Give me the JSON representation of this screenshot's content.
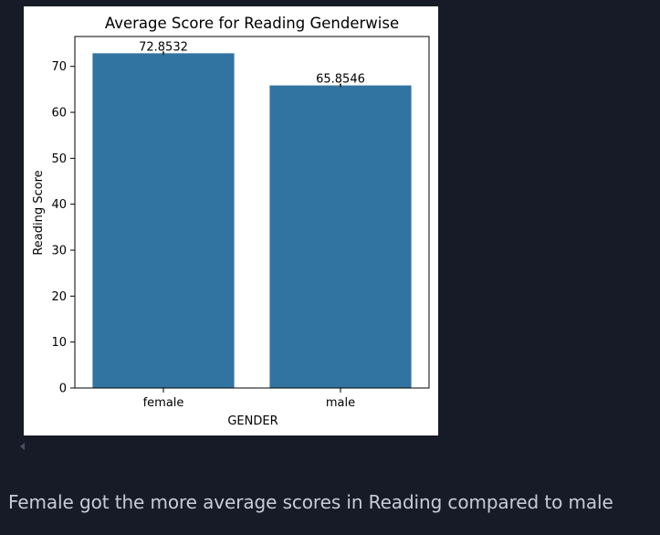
{
  "chart_data": {
    "type": "bar",
    "title": "Average Score for Reading Genderwise",
    "xlabel": "GENDER",
    "ylabel": "Reading Score",
    "categories": [
      "female",
      "male"
    ],
    "values": [
      72.8532,
      65.8546
    ],
    "data_labels": [
      "72.8532",
      "65.8546"
    ],
    "yticks": [
      0,
      10,
      20,
      30,
      40,
      50,
      60,
      70
    ],
    "ylim": [
      0,
      76.5
    ],
    "bar_color": "#3274a1",
    "grid": false,
    "legend": "none"
  },
  "markdown": {
    "text": "Female got the more average scores in Reading compared to male"
  },
  "colors": {
    "background": "#171b28",
    "text": "#c9ccd6"
  }
}
